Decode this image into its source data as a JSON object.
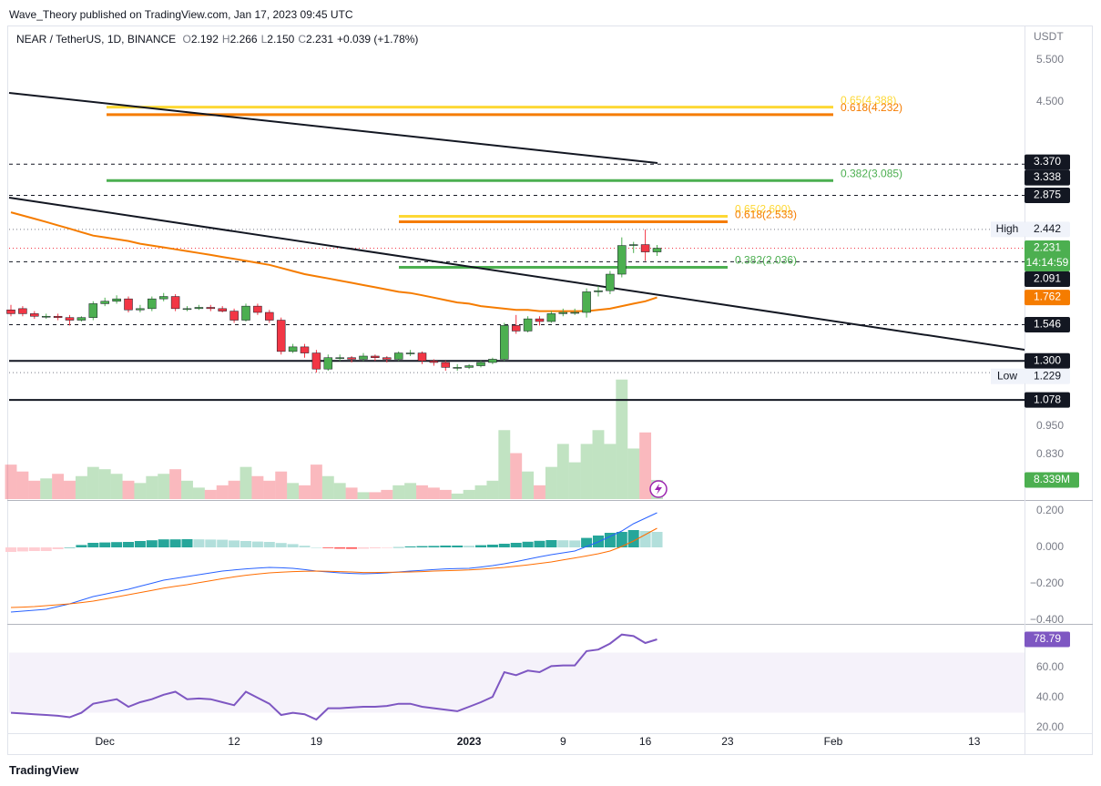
{
  "header": {
    "attribution": "Wave_Theory published on TradingView.com, Jan 17, 2023 09:45 UTC",
    "symbol": "NEAR / TetherUS, 1D, BINANCE",
    "ohlc": [
      {
        "key": "O",
        "value": "2.192"
      },
      {
        "key": "H",
        "value": "2.266"
      },
      {
        "key": "L",
        "value": "2.150"
      },
      {
        "key": "C",
        "value": "2.231"
      }
    ],
    "change": "+0.039 (+1.78%)"
  },
  "footer": {
    "brand": "TradingView"
  },
  "chart_data": {
    "type": "candlestick",
    "axis_unit": "USDT",
    "categories": [
      null,
      null,
      null,
      null,
      null,
      null,
      null,
      null,
      "Dec",
      null,
      null,
      null,
      null,
      null,
      null,
      null,
      null,
      null,
      null,
      "12",
      null,
      null,
      null,
      null,
      null,
      null,
      "19",
      null,
      null,
      null,
      null,
      null,
      null,
      null,
      null,
      null,
      null,
      null,
      null,
      "2023",
      null,
      null,
      null,
      null,
      null,
      null,
      null,
      "9",
      null,
      null,
      null,
      null,
      null,
      null,
      "16",
      null,
      null,
      null,
      null,
      null,
      null,
      "23",
      null,
      null,
      null,
      null,
      null,
      null,
      null,
      null,
      "Feb",
      null,
      null,
      null,
      null,
      null,
      null,
      null,
      null,
      null,
      null,
      null,
      "13",
      null,
      null,
      null,
      null
    ],
    "open": [
      1.66,
      1.67,
      1.63,
      1.61,
      1.61,
      1.6,
      1.58,
      1.6,
      1.71,
      1.73,
      1.75,
      1.66,
      1.67,
      1.75,
      1.77,
      1.67,
      1.67,
      1.68,
      1.67,
      1.65,
      1.58,
      1.69,
      1.64,
      1.58,
      1.36,
      1.39,
      1.35,
      1.25,
      1.32,
      1.32,
      1.31,
      1.33,
      1.32,
      1.31,
      1.35,
      1.35,
      1.3,
      1.29,
      1.26,
      1.26,
      1.27,
      1.29,
      1.31,
      1.54,
      1.5,
      1.59,
      1.57,
      1.63,
      1.64,
      1.64,
      1.81,
      1.82,
      1.97,
      2.26,
      2.27,
      2.192,
      null,
      null,
      null,
      null,
      null,
      null,
      null,
      null,
      null,
      null,
      null,
      null,
      null,
      null,
      null,
      null,
      null,
      null,
      null,
      null,
      null,
      null,
      null,
      null,
      null,
      null,
      null,
      null,
      null,
      null,
      null
    ],
    "high": [
      1.7,
      1.69,
      1.65,
      1.63,
      1.63,
      1.62,
      1.61,
      1.73,
      1.76,
      1.78,
      1.77,
      1.7,
      1.77,
      1.8,
      1.79,
      1.69,
      1.7,
      1.7,
      1.69,
      1.67,
      1.71,
      1.71,
      1.66,
      1.6,
      1.41,
      1.41,
      1.37,
      1.34,
      1.34,
      1.33,
      1.35,
      1.34,
      1.33,
      1.36,
      1.37,
      1.36,
      1.31,
      1.3,
      1.28,
      1.28,
      1.3,
      1.32,
      1.56,
      1.62,
      1.61,
      1.61,
      1.65,
      1.67,
      1.67,
      1.84,
      1.86,
      2.0,
      2.35,
      2.3,
      2.442,
      2.266,
      null,
      null,
      null,
      null,
      null,
      null,
      null,
      null,
      null,
      null,
      null,
      null,
      null,
      null,
      null,
      null,
      null,
      null,
      null,
      null,
      null,
      null,
      null,
      null,
      null,
      null,
      null,
      null,
      null,
      null,
      null
    ],
    "low": [
      1.61,
      1.61,
      1.59,
      1.59,
      1.58,
      1.54,
      1.57,
      1.58,
      1.69,
      1.71,
      1.64,
      1.64,
      1.65,
      1.73,
      1.65,
      1.65,
      1.66,
      1.65,
      1.64,
      1.56,
      1.57,
      1.62,
      1.56,
      1.34,
      1.35,
      1.32,
      1.229,
      1.24,
      1.3,
      1.29,
      1.3,
      1.3,
      1.29,
      1.3,
      1.33,
      1.28,
      1.27,
      1.24,
      1.24,
      1.25,
      1.26,
      1.28,
      1.3,
      1.48,
      1.49,
      1.54,
      1.56,
      1.61,
      1.62,
      1.6,
      1.77,
      1.79,
      1.94,
      2.18,
      2.1,
      2.15,
      null,
      null,
      null,
      null,
      null,
      null,
      null,
      null,
      null,
      null,
      null,
      null,
      null,
      null,
      null,
      null,
      null,
      null,
      null,
      null,
      null,
      null,
      null,
      null,
      null,
      null,
      null,
      null,
      null,
      null,
      null
    ],
    "close": [
      1.63,
      1.63,
      1.61,
      1.61,
      1.6,
      1.58,
      1.6,
      1.71,
      1.73,
      1.75,
      1.66,
      1.67,
      1.75,
      1.77,
      1.67,
      1.67,
      1.68,
      1.67,
      1.65,
      1.58,
      1.69,
      1.64,
      1.58,
      1.36,
      1.39,
      1.35,
      1.25,
      1.32,
      1.32,
      1.31,
      1.33,
      1.32,
      1.31,
      1.35,
      1.35,
      1.3,
      1.29,
      1.26,
      1.26,
      1.27,
      1.29,
      1.31,
      1.54,
      1.5,
      1.59,
      1.57,
      1.63,
      1.64,
      1.64,
      1.81,
      1.82,
      1.97,
      2.26,
      2.27,
      2.192,
      2.231,
      null,
      null,
      null,
      null,
      null,
      null,
      null,
      null,
      null,
      null,
      null,
      null,
      null,
      null,
      null,
      null,
      null,
      null,
      null,
      null,
      null,
      null,
      null,
      null,
      null,
      null,
      null,
      null,
      null,
      null,
      null
    ],
    "up_color": "#4caf50",
    "down_color": "#f23645",
    "ylim": [
      0.67,
      6.49
    ],
    "log_scale": true,
    "yticks": [
      {
        "value": 5.5,
        "label": "5.500"
      },
      {
        "value": 4.5,
        "label": "4.500"
      },
      {
        "value": 0.95,
        "label": "0.950"
      },
      {
        "value": 0.83,
        "label": "0.830"
      }
    ],
    "ema": {
      "color": "#f57c00",
      "values": [
        2.65,
        2.61,
        2.57,
        2.53,
        2.49,
        2.45,
        2.41,
        2.37,
        2.35,
        2.33,
        2.31,
        2.28,
        2.26,
        2.24,
        2.22,
        2.2,
        2.18,
        2.16,
        2.14,
        2.12,
        2.1,
        2.08,
        2.06,
        2.03,
        2.0,
        1.97,
        1.95,
        1.93,
        1.91,
        1.89,
        1.87,
        1.85,
        1.83,
        1.81,
        1.8,
        1.78,
        1.76,
        1.74,
        1.72,
        1.71,
        1.69,
        1.68,
        1.67,
        1.66,
        1.66,
        1.65,
        1.65,
        1.65,
        1.65,
        1.65,
        1.66,
        1.67,
        1.69,
        1.71,
        1.73,
        1.762,
        null,
        null,
        null,
        null,
        null,
        null,
        null,
        null,
        null,
        null,
        null,
        null,
        null,
        null,
        null,
        null,
        null,
        null,
        null,
        null,
        null,
        null,
        null,
        null,
        null,
        null,
        null,
        null,
        null,
        null,
        null
      ]
    },
    "fib_sets": [
      {
        "levels": [
          {
            "value": 4.388,
            "label": "0.65(4.388)",
            "color": "#fdd835"
          },
          {
            "value": 4.232,
            "label": "0.618(4.232)",
            "color": "#f57c00"
          },
          {
            "value": 3.085,
            "label": "0.382(3.085)",
            "color": "#4caf50"
          }
        ]
      },
      {
        "levels": [
          {
            "value": 2.6,
            "label": "0.65(2.600)",
            "color": "#fdd835"
          },
          {
            "value": 2.533,
            "label": "0.618(2.533)",
            "color": "#f57c00"
          },
          {
            "value": 2.036,
            "label": "0.382(2.036)",
            "color": "#4caf50"
          }
        ]
      }
    ],
    "price_labels": [
      {
        "value": 3.37,
        "label": "3.370",
        "line": "none",
        "bg": "#131722"
      },
      {
        "value": 3.338,
        "label": "3.338",
        "line": "dashed",
        "line_color": "#131722",
        "bg": "#131722"
      },
      {
        "value": 2.875,
        "label": "2.875",
        "line": "dashed",
        "line_color": "#131722",
        "bg": "#131722"
      },
      {
        "value": 2.442,
        "label": "2.442",
        "caption": "High",
        "line": "dotted",
        "line_color": "#787b86",
        "bg": "#f0f3fa"
      },
      {
        "value": 2.231,
        "label": "2.231",
        "sub": "14:14:59",
        "line": "dotted",
        "line_color": "#f23645",
        "bg": "#4caf50"
      },
      {
        "value": 2.091,
        "label": "2.091",
        "line": "dashed",
        "line_color": "#131722",
        "bg": "#131722"
      },
      {
        "value": 1.762,
        "label": "1.762",
        "line": "none",
        "bg": "#f57c00"
      },
      {
        "value": 1.546,
        "label": "1.546",
        "line": "dashed",
        "line_color": "#131722",
        "bg": "#131722"
      },
      {
        "value": 1.3,
        "label": "1.300",
        "line": "solid",
        "line_color": "#131722",
        "bg": "#131722"
      },
      {
        "value": 1.229,
        "label": "1.229",
        "caption": "Low",
        "line": "dotted",
        "line_color": "#787b86",
        "bg": "#f0f3fa"
      },
      {
        "value": 1.078,
        "label": "1.078",
        "line": "solid",
        "line_color": "#131722",
        "bg": "#131722"
      }
    ],
    "volume": {
      "ylim": [
        0,
        206
      ],
      "last_value_label": "8.339M",
      "badge_color": "#4caf50",
      "values": [
        15,
        12,
        8,
        9,
        11,
        8,
        10,
        14,
        13,
        11,
        8,
        7,
        10,
        11,
        13,
        8,
        5,
        4,
        6,
        8,
        14,
        10,
        8,
        12,
        7,
        6,
        15,
        10,
        7,
        5,
        3,
        3,
        4,
        6,
        7,
        6,
        5,
        4,
        2.4,
        4,
        6,
        8,
        30,
        20,
        12,
        6,
        14,
        24,
        16,
        24,
        30,
        24,
        52,
        22,
        29,
        8.339,
        null,
        null,
        null,
        null,
        null,
        null,
        null,
        null,
        null,
        null,
        null,
        null,
        null,
        null,
        null,
        null,
        null,
        null,
        null,
        null,
        null,
        null,
        null,
        null,
        null,
        null,
        null,
        null,
        null,
        null,
        null
      ]
    },
    "macd": {
      "ylim": [
        -0.415,
        0.25
      ],
      "yticks": [
        {
          "value": 0.2,
          "label": "0.200"
        },
        {
          "value": 0,
          "label": "0.000"
        },
        {
          "value": -0.2,
          "label": "−0.200"
        },
        {
          "value": -0.4,
          "label": "−0.400"
        }
      ],
      "macd_color": "#2962ff",
      "signal_color": "#ff6d00",
      "histogram_colors": [
        "#26a69a",
        "#b2dfdb",
        "#ff5252",
        "#ffcdd2"
      ],
      "macd": [
        -0.355,
        -0.35,
        -0.345,
        -0.34,
        -0.325,
        -0.31,
        -0.29,
        -0.27,
        -0.257,
        -0.243,
        -0.23,
        -0.213,
        -0.197,
        -0.18,
        -0.17,
        -0.16,
        -0.15,
        -0.14,
        -0.13,
        -0.124,
        -0.118,
        -0.114,
        -0.11,
        -0.112,
        -0.115,
        -0.122,
        -0.13,
        -0.135,
        -0.14,
        -0.143,
        -0.145,
        -0.143,
        -0.14,
        -0.135,
        -0.13,
        -0.126,
        -0.122,
        -0.118,
        -0.116,
        -0.115,
        -0.108,
        -0.1,
        -0.09,
        -0.078,
        -0.065,
        -0.052,
        -0.04,
        -0.03,
        -0.02,
        0.005,
        0.03,
        0.06,
        0.09,
        0.13,
        0.16,
        0.19,
        null,
        null,
        null,
        null,
        null,
        null,
        null,
        null,
        null,
        null,
        null,
        null,
        null,
        null,
        null,
        null,
        null,
        null,
        null,
        null,
        null,
        null,
        null,
        null,
        null,
        null,
        null,
        null,
        null,
        null,
        null
      ],
      "signal": [
        -0.33,
        -0.328,
        -0.325,
        -0.32,
        -0.315,
        -0.31,
        -0.303,
        -0.295,
        -0.284,
        -0.272,
        -0.26,
        -0.248,
        -0.236,
        -0.224,
        -0.214,
        -0.205,
        -0.194,
        -0.183,
        -0.172,
        -0.162,
        -0.153,
        -0.146,
        -0.14,
        -0.136,
        -0.133,
        -0.131,
        -0.13,
        -0.131,
        -0.133,
        -0.135,
        -0.138,
        -0.138,
        -0.137,
        -0.136,
        -0.135,
        -0.133,
        -0.13,
        -0.128,
        -0.126,
        -0.124,
        -0.12,
        -0.115,
        -0.11,
        -0.103,
        -0.096,
        -0.088,
        -0.08,
        -0.069,
        -0.058,
        -0.047,
        -0.035,
        -0.02,
        0.005,
        0.035,
        0.07,
        0.105,
        null,
        null,
        null,
        null,
        null,
        null,
        null,
        null,
        null,
        null,
        null,
        null,
        null,
        null,
        null,
        null,
        null,
        null,
        null,
        null,
        null,
        null,
        null,
        null,
        null,
        null,
        null,
        null,
        null,
        null,
        null
      ],
      "histogram": [
        -0.025,
        -0.022,
        -0.02,
        -0.02,
        -0.01,
        0,
        0.013,
        0.025,
        0.027,
        0.029,
        0.03,
        0.035,
        0.039,
        0.044,
        0.044,
        0.045,
        0.044,
        0.043,
        0.042,
        0.038,
        0.035,
        0.032,
        0.03,
        0.024,
        0.018,
        0.009,
        0,
        -0.004,
        -0.007,
        -0.008,
        -0.007,
        -0.005,
        -0.003,
        0.001,
        0.005,
        0.007,
        0.008,
        0.01,
        0.01,
        0.009,
        0.012,
        0.015,
        0.02,
        0.025,
        0.031,
        0.036,
        0.04,
        0.039,
        0.038,
        0.052,
        0.065,
        0.08,
        0.085,
        0.095,
        0.09,
        0.085,
        null,
        null,
        null,
        null,
        null,
        null,
        null,
        null,
        null,
        null,
        null,
        null,
        null,
        null,
        null,
        null,
        null,
        null,
        null,
        null,
        null,
        null,
        null,
        null,
        null,
        null,
        null,
        null,
        null,
        null,
        null
      ]
    },
    "rsi": {
      "ylim": [
        15.8,
        88.5
      ],
      "band": [
        30,
        70
      ],
      "color": "#7e57c2",
      "yticks": [
        {
          "value": 60,
          "label": "60.00"
        },
        {
          "value": 40,
          "label": "40.00"
        },
        {
          "value": 20,
          "label": "20.00"
        }
      ],
      "values": [
        30,
        29.5,
        29,
        28.5,
        28,
        27,
        30,
        36,
        37.5,
        39,
        34,
        37,
        39,
        42,
        44,
        39,
        39.5,
        39,
        37,
        35,
        44,
        40,
        36,
        28.5,
        30,
        29,
        25.5,
        33,
        33,
        33.5,
        34,
        34,
        34.5,
        36,
        36,
        34,
        33,
        32,
        31,
        34,
        37,
        40.6,
        57,
        55,
        58,
        57,
        61,
        61.5,
        61.5,
        71,
        72,
        76,
        82,
        81,
        76.4,
        78.79,
        null,
        null,
        null,
        null,
        null,
        null,
        null,
        null,
        null,
        null,
        null,
        null,
        null,
        null,
        null,
        null,
        null,
        null,
        null,
        null,
        null,
        null,
        null,
        null,
        null,
        null,
        null,
        null,
        null,
        null,
        null
      ]
    }
  }
}
